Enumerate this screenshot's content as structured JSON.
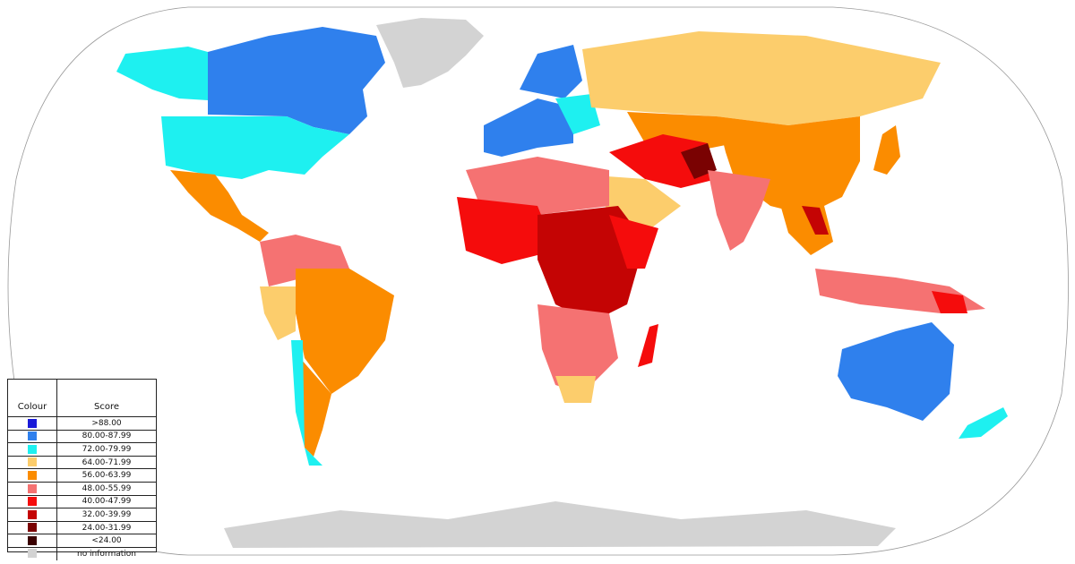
{
  "legend": {
    "header_colour": "Colour",
    "header_score": "Score",
    "rows": [
      {
        "label": ">88.00",
        "color": "#1a1ad8"
      },
      {
        "label": "80.00-87.99",
        "color": "#2f80ed"
      },
      {
        "label": "72.00-79.99",
        "color": "#1ef0f0"
      },
      {
        "label": "64.00-71.99",
        "color": "#fccd6c"
      },
      {
        "label": "56.00-63.99",
        "color": "#fb8c00"
      },
      {
        "label": "48.00-55.99",
        "color": "#f57272"
      },
      {
        "label": "40.00-47.99",
        "color": "#f50c0c"
      },
      {
        "label": "32.00-39.99",
        "color": "#c40404"
      },
      {
        "label": "24.00-31.99",
        "color": "#7a0202"
      },
      {
        "label": "<24.00",
        "color": "#3a0000"
      },
      {
        "label": "no information",
        "color": "#d3d3d3"
      }
    ]
  }
}
